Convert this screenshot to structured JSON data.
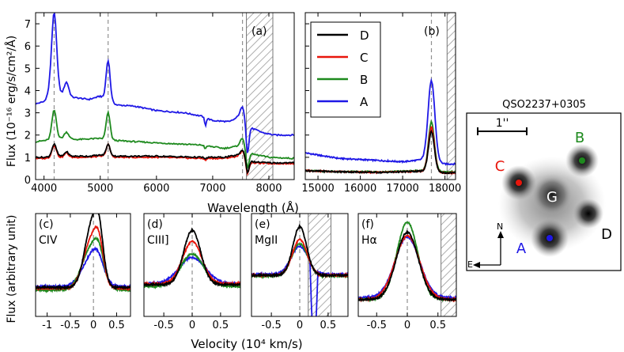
{
  "colors": {
    "D": "#000000",
    "C": "#e8160c",
    "B": "#1e8a1e",
    "A": "#1f18e6",
    "hatch": "#9a9a9a",
    "dash": "#909090"
  },
  "chart_data": [
    {
      "id": "a",
      "type": "line",
      "panel_label": "(a)",
      "xlabel": "Wavelength (Å)",
      "ylabel": "Flux (10⁻¹⁶ erg/s/cm²/Å)",
      "xlim": [
        3850,
        8450
      ],
      "ylim": [
        0,
        7.5
      ],
      "xticks": [
        4000,
        5000,
        6000,
        7000,
        8000
      ],
      "yticks": [
        0,
        1,
        2,
        3,
        4,
        5,
        6,
        7
      ],
      "dashed_lines": [
        4180,
        5140,
        7530
      ],
      "hatched_region": [
        7600,
        8070
      ],
      "legend": {
        "position": "top-right",
        "entries": [
          "D",
          "C",
          "B",
          "A"
        ]
      },
      "baseline": {
        "A": [
          [
            3850,
            3.4
          ],
          [
            4000,
            3.5
          ],
          [
            4100,
            3.9
          ],
          [
            4300,
            3.85
          ],
          [
            4500,
            3.7
          ],
          [
            4800,
            3.6
          ],
          [
            5000,
            3.75
          ],
          [
            5300,
            3.35
          ],
          [
            5600,
            3.3
          ],
          [
            6000,
            3.1
          ],
          [
            6500,
            3.0
          ],
          [
            6800,
            2.85
          ],
          [
            7000,
            2.65
          ],
          [
            7300,
            2.6
          ],
          [
            7450,
            2.8
          ],
          [
            7700,
            2.3
          ],
          [
            7900,
            2.1
          ],
          [
            8100,
            2.0
          ],
          [
            8450,
            2.0
          ]
        ],
        "B": [
          [
            3850,
            1.7
          ],
          [
            4000,
            1.75
          ],
          [
            4300,
            1.85
          ],
          [
            4600,
            1.8
          ],
          [
            5000,
            1.85
          ],
          [
            5300,
            1.75
          ],
          [
            6000,
            1.65
          ],
          [
            6800,
            1.55
          ],
          [
            7200,
            1.4
          ],
          [
            7450,
            1.5
          ],
          [
            7700,
            1.15
          ],
          [
            8000,
            1.0
          ],
          [
            8450,
            0.95
          ]
        ],
        "C": [
          [
            3850,
            0.95
          ],
          [
            4000,
            0.95
          ],
          [
            4300,
            1.0
          ],
          [
            4800,
            1.0
          ],
          [
            5000,
            1.05
          ],
          [
            5300,
            1.0
          ],
          [
            6000,
            1.0
          ],
          [
            6800,
            0.95
          ],
          [
            7200,
            0.95
          ],
          [
            7450,
            1.05
          ],
          [
            7700,
            0.75
          ],
          [
            8000,
            0.72
          ],
          [
            8450,
            0.72
          ]
        ],
        "D": [
          [
            3850,
            1.0
          ],
          [
            4000,
            1.0
          ],
          [
            4300,
            1.05
          ],
          [
            4800,
            1.05
          ],
          [
            5000,
            1.1
          ],
          [
            5300,
            1.05
          ],
          [
            6000,
            1.05
          ],
          [
            6800,
            1.0
          ],
          [
            7200,
            1.0
          ],
          [
            7450,
            1.1
          ],
          [
            7700,
            0.8
          ],
          [
            8000,
            0.75
          ],
          [
            8450,
            0.75
          ]
        ]
      },
      "peaks": {
        "A": [
          [
            4180,
            3.6,
            45
          ],
          [
            4400,
            0.6,
            40
          ],
          [
            5140,
            1.8,
            35
          ],
          [
            7530,
            0.6,
            40
          ]
        ],
        "B": [
          [
            4180,
            1.3,
            40
          ],
          [
            4400,
            0.3,
            40
          ],
          [
            5140,
            1.2,
            35
          ],
          [
            7530,
            0.45,
            40
          ]
        ],
        "C": [
          [
            4180,
            0.55,
            40
          ],
          [
            4400,
            0.2,
            35
          ],
          [
            5140,
            0.55,
            35
          ],
          [
            7530,
            0.3,
            40
          ]
        ],
        "D": [
          [
            4180,
            0.55,
            40
          ],
          [
            4400,
            0.2,
            35
          ],
          [
            5140,
            0.5,
            35
          ],
          [
            7530,
            0.3,
            40
          ]
        ]
      },
      "dips": {
        "A": [
          [
            6870,
            0.35,
            15
          ],
          [
            7620,
            1.3,
            25
          ]
        ],
        "B": [
          [
            6870,
            0.15,
            15
          ],
          [
            7620,
            0.8,
            25
          ]
        ],
        "C": [
          [
            6870,
            0.1,
            15
          ],
          [
            7620,
            0.6,
            25
          ]
        ],
        "D": [
          [
            6870,
            0.1,
            15
          ],
          [
            7620,
            0.6,
            25
          ]
        ]
      }
    },
    {
      "id": "b",
      "type": "line",
      "panel_label": "(b)",
      "xlim": [
        14700,
        18250
      ],
      "ylim": [
        0,
        7.5
      ],
      "xticks": [
        15000,
        16000,
        17000,
        18000
      ],
      "dashed_lines": [
        17680
      ],
      "hatched_region": [
        18050,
        18250
      ],
      "baseline": {
        "A": [
          [
            14700,
            1.2
          ],
          [
            15000,
            1.1
          ],
          [
            15500,
            0.95
          ],
          [
            16000,
            0.9
          ],
          [
            16500,
            0.85
          ],
          [
            17000,
            0.8
          ],
          [
            17500,
            0.9
          ],
          [
            18000,
            0.7
          ],
          [
            18250,
            0.7
          ]
        ],
        "B": [
          [
            14700,
            0.4
          ],
          [
            15500,
            0.35
          ],
          [
            16500,
            0.35
          ],
          [
            17500,
            0.4
          ],
          [
            18000,
            0.35
          ],
          [
            18250,
            0.35
          ]
        ],
        "C": [
          [
            14700,
            0.4
          ],
          [
            15500,
            0.35
          ],
          [
            16500,
            0.32
          ],
          [
            17500,
            0.38
          ],
          [
            18000,
            0.3
          ],
          [
            18250,
            0.3
          ]
        ],
        "D": [
          [
            14700,
            0.4
          ],
          [
            15500,
            0.35
          ],
          [
            16500,
            0.32
          ],
          [
            17500,
            0.38
          ],
          [
            18000,
            0.3
          ],
          [
            18250,
            0.3
          ]
        ]
      },
      "peaks": {
        "A": [
          [
            17680,
            3.6,
            80
          ]
        ],
        "B": [
          [
            17680,
            2.2,
            70
          ]
        ],
        "C": [
          [
            17680,
            2.0,
            70
          ]
        ],
        "D": [
          [
            17680,
            1.8,
            70
          ]
        ]
      }
    },
    {
      "id": "c",
      "type": "line",
      "panel_label": "(c)",
      "line_name": "CIV",
      "xlim": [
        -1.25,
        0.8
      ],
      "ylim": [
        0,
        1.1
      ],
      "xticks": [
        -1,
        -0.5,
        0,
        0.5
      ],
      "xtick_labels": [
        "-1",
        "-0.5",
        "0",
        "0.5"
      ],
      "dashed_lines": [
        0
      ],
      "baseline": {
        "A": 0.32,
        "B": 0.28,
        "C": 0.3,
        "D": 0.31
      },
      "peaks": {
        "A": [
          [
            -0.05,
            0.3,
            0.2
          ],
          [
            0.1,
            0.15,
            0.12
          ]
        ],
        "B": [
          [
            -0.05,
            0.45,
            0.2
          ],
          [
            0.12,
            0.2,
            0.1
          ]
        ],
        "C": [
          [
            -0.05,
            0.5,
            0.17
          ],
          [
            0.12,
            0.3,
            0.1
          ]
        ],
        "D": [
          [
            -0.05,
            0.62,
            0.15
          ],
          [
            0.12,
            0.45,
            0.1
          ]
        ]
      }
    },
    {
      "id": "d",
      "type": "line",
      "panel_label": "(d)",
      "line_name": "CIII]",
      "xlim": [
        -0.85,
        0.85
      ],
      "ylim": [
        0,
        1.1
      ],
      "xticks": [
        -0.5,
        0,
        0.5
      ],
      "xtick_labels": [
        "-0.5",
        "0",
        "0.5"
      ],
      "dashed_lines": [
        0
      ],
      "baseline": {
        "A": 0.35,
        "B": 0.32,
        "C": 0.35,
        "D": 0.34
      },
      "peaks": {
        "A": [
          [
            0,
            0.28,
            0.23
          ]
        ],
        "B": [
          [
            0,
            0.35,
            0.2
          ]
        ],
        "C": [
          [
            0,
            0.45,
            0.17
          ]
        ],
        "D": [
          [
            0,
            0.58,
            0.15
          ]
        ]
      }
    },
    {
      "id": "e",
      "type": "line",
      "panel_label": "(e)",
      "line_name": "MgII",
      "xlim": [
        -0.85,
        0.85
      ],
      "ylim": [
        0,
        1.1
      ],
      "xticks": [
        -0.5,
        0,
        0.5
      ],
      "xtick_labels": [
        "-0.5",
        "0",
        "0.5"
      ],
      "dashed_lines": [
        0
      ],
      "hatched_region": [
        0.15,
        0.55
      ],
      "baseline": {
        "A": 0.45,
        "B": 0.43,
        "C": 0.44,
        "D": 0.44
      },
      "peaks": {
        "A": [
          [
            0,
            0.3,
            0.15
          ]
        ],
        "B": [
          [
            0,
            0.35,
            0.14
          ]
        ],
        "C": [
          [
            0,
            0.38,
            0.13
          ]
        ],
        "D": [
          [
            0,
            0.52,
            0.12
          ]
        ]
      }
    },
    {
      "id": "f",
      "type": "line",
      "panel_label": "(f)",
      "line_name": "Hα",
      "xlim": [
        -0.8,
        0.8
      ],
      "ylim": [
        0,
        1.1
      ],
      "xticks": [
        -0.5,
        0,
        0.5
      ],
      "xtick_labels": [
        "-0.5",
        "0",
        "0.5"
      ],
      "dashed_lines": [
        0
      ],
      "hatched_region": [
        0.55,
        0.8
      ],
      "baseline": {
        "A": 0.2,
        "B": 0.18,
        "C": 0.18,
        "D": 0.18
      },
      "peaks": {
        "A": [
          [
            0,
            0.65,
            0.2
          ]
        ],
        "B": [
          [
            0,
            0.83,
            0.17
          ]
        ],
        "C": [
          [
            0,
            0.68,
            0.2
          ]
        ],
        "D": [
          [
            0,
            0.72,
            0.18
          ]
        ]
      }
    }
  ],
  "bottom_xlabel": "Velocity (10⁴ km/s)",
  "bottom_ylabel": "Flux (arbitrary unit)",
  "image_panel": {
    "title": "QSO2237+0305",
    "scale_label": "1''",
    "labels": {
      "A": "A",
      "B": "B",
      "C": "C",
      "D": "D",
      "G": "G"
    },
    "compass": {
      "north": "N",
      "east": "E"
    }
  }
}
